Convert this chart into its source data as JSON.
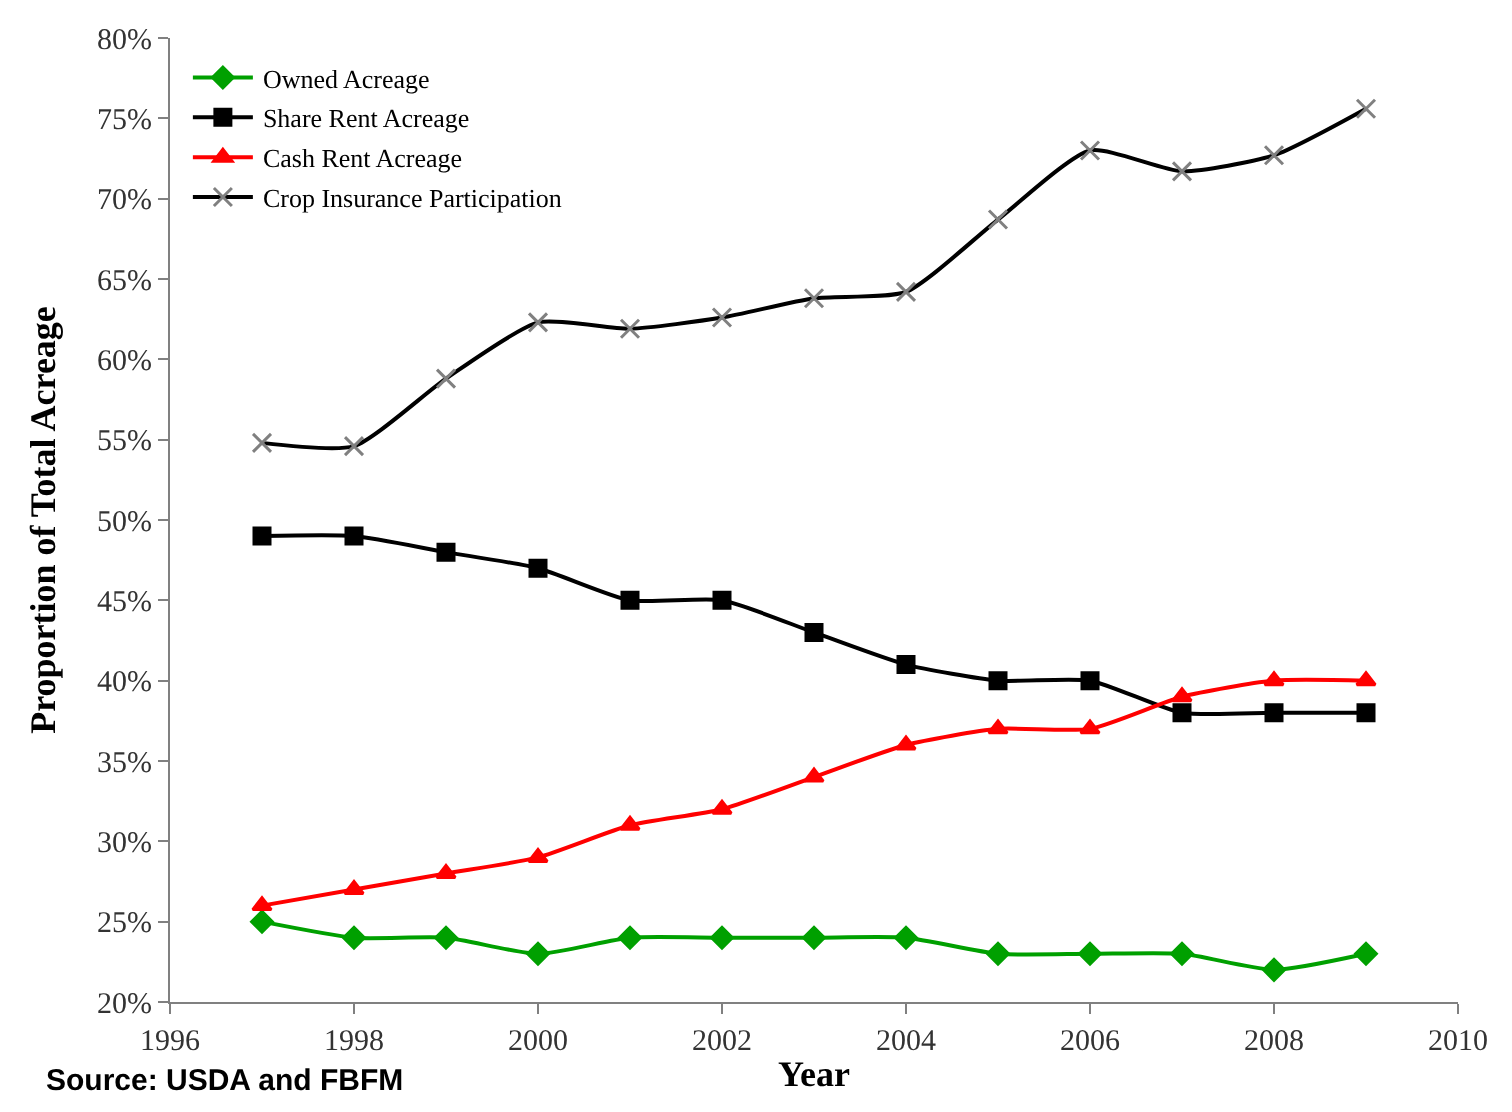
{
  "chart_data": {
    "type": "line",
    "xlabel": "Year",
    "ylabel": "Proportion of Total Acreage",
    "x": [
      1997,
      1998,
      1999,
      2000,
      2001,
      2002,
      2003,
      2004,
      2005,
      2006,
      2007,
      2008,
      2009
    ],
    "series": [
      {
        "name": "Owned Acreage",
        "color": "#00a000",
        "marker": "diamond",
        "values": [
          25,
          24,
          24,
          23,
          24,
          24,
          24,
          24,
          23,
          23,
          23,
          22,
          23
        ]
      },
      {
        "name": "Share Rent Acreage",
        "color": "#000000",
        "marker": "square",
        "values": [
          49,
          49,
          48,
          47,
          45,
          45,
          43,
          41,
          40,
          40,
          38,
          38,
          38
        ]
      },
      {
        "name": "Cash Rent Acreage",
        "color": "#ff0000",
        "marker": "triangle",
        "values": [
          26,
          27,
          28,
          29,
          31,
          32,
          34,
          36,
          37,
          37,
          39,
          40,
          40
        ]
      },
      {
        "name": "Crop Insurance Participation",
        "color": "#000000",
        "marker": "cross",
        "values": [
          54.8,
          54.6,
          58.8,
          62.3,
          61.9,
          62.6,
          63.8,
          64.2,
          68.7,
          73,
          71.7,
          72.7,
          75.6
        ]
      }
    ],
    "xlim": [
      1996,
      2010
    ],
    "xticks": [
      1996,
      1998,
      2000,
      2002,
      2004,
      2006,
      2008,
      2010
    ],
    "ylim": [
      20,
      80
    ],
    "yticks": [
      {
        "value": 20,
        "label": "20%"
      },
      {
        "value": 25,
        "label": "25%"
      },
      {
        "value": 30,
        "label": "30%"
      },
      {
        "value": 35,
        "label": "35%"
      },
      {
        "value": 40,
        "label": "40%"
      },
      {
        "value": 45,
        "label": "45%"
      },
      {
        "value": 50,
        "label": "50%"
      },
      {
        "value": 55,
        "label": "55%"
      },
      {
        "value": 60,
        "label": "60%"
      },
      {
        "value": 65,
        "label": "65%"
      },
      {
        "value": 70,
        "label": "70%"
      },
      {
        "value": 75,
        "label": "75%"
      },
      {
        "value": 80,
        "label": "80%"
      }
    ],
    "legend": "top left",
    "line_style": "solid",
    "annotations": [
      "Source: USDA and FBFM"
    ]
  }
}
